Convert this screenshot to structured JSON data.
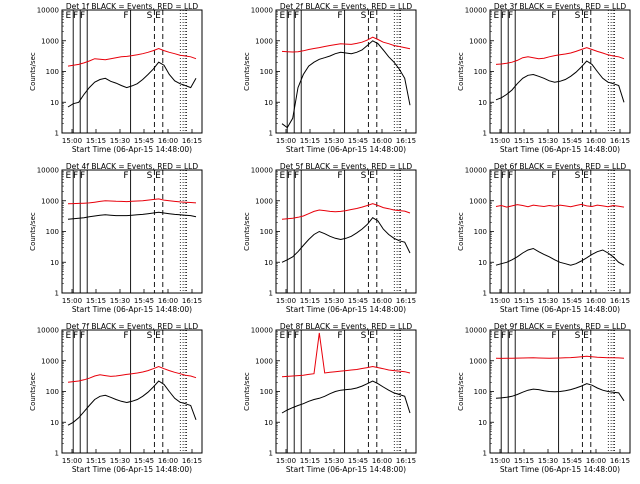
{
  "chart_data": [
    {
      "type": "line",
      "title": "Det 1f BLACK = Events, RED = LLD",
      "xlabel": "Start Time (06-Apr-15 14:48:00)",
      "ylabel": "Counts/sec",
      "ylim": [
        1,
        10000
      ],
      "yscale": "log",
      "xticks": [
        "15:00",
        "15:15",
        "15:30",
        "15:45",
        "16:00",
        "16:15"
      ],
      "yticks": [
        "1",
        "10",
        "100",
        "1000",
        "10000"
      ],
      "markers": [
        {
          "label": "E",
          "style": "solid"
        },
        {
          "label": "F",
          "style": "solid"
        },
        {
          "label": "F",
          "style": "solid"
        },
        {
          "label": "F",
          "style": "solid"
        },
        {
          "label": "S",
          "style": "dashed"
        },
        {
          "label": "E",
          "style": "dashed"
        }
      ],
      "series": [
        {
          "name": "RED = LLD",
          "color": "#e8000b",
          "values": [
            150,
            160,
            170,
            190,
            220,
            260,
            250,
            240,
            260,
            280,
            300,
            310,
            330,
            350,
            380,
            420,
            480,
            560,
            480,
            420,
            380,
            340,
            320,
            300,
            260
          ]
        },
        {
          "name": "BLACK = Events",
          "color": "#000000",
          "values": [
            7,
            9,
            10,
            18,
            30,
            45,
            55,
            60,
            48,
            42,
            35,
            30,
            34,
            40,
            55,
            80,
            120,
            200,
            160,
            80,
            50,
            40,
            35,
            30,
            60
          ]
        }
      ]
    },
    {
      "type": "line",
      "title": "Det 2f BLACK = Events, RED = LLD",
      "xlabel": "Start Time (06-Apr-15 14:48:00)",
      "ylabel": "Counts/sec",
      "ylim": [
        1,
        10000
      ],
      "yscale": "log",
      "xticks": [
        "15:00",
        "15:15",
        "15:30",
        "15:45",
        "16:00",
        "16:15"
      ],
      "yticks": [
        "1",
        "10",
        "100",
        "1000",
        "10000"
      ],
      "markers": [
        {
          "label": "E",
          "style": "solid"
        },
        {
          "label": "F",
          "style": "solid"
        },
        {
          "label": "F",
          "style": "solid"
        },
        {
          "label": "F",
          "style": "solid"
        },
        {
          "label": "S",
          "style": "dashed"
        },
        {
          "label": "E",
          "style": "dashed"
        }
      ],
      "series": [
        {
          "name": "RED = LLD",
          "color": "#e8000b",
          "values": [
            450,
            440,
            430,
            440,
            470,
            520,
            560,
            600,
            650,
            700,
            750,
            800,
            780,
            760,
            820,
            900,
            1050,
            1300,
            1100,
            900,
            800,
            700,
            650,
            600,
            550
          ]
        },
        {
          "name": "BLACK = Events",
          "color": "#000000",
          "values": [
            2,
            1.5,
            3,
            30,
            80,
            150,
            200,
            250,
            280,
            320,
            380,
            420,
            400,
            380,
            420,
            500,
            700,
            1000,
            800,
            500,
            300,
            200,
            120,
            60,
            8
          ]
        }
      ]
    },
    {
      "type": "line",
      "title": "Det 3f BLACK = Events, RED = LLD",
      "xlabel": "Start Time (06-Apr-15 14:48:00)",
      "ylabel": "Counts/sec",
      "ylim": [
        1,
        10000
      ],
      "yscale": "log",
      "xticks": [
        "15:00",
        "15:15",
        "15:30",
        "15:45",
        "16:00",
        "16:15"
      ],
      "yticks": [
        "1",
        "10",
        "100",
        "1000",
        "10000"
      ],
      "markers": [
        {
          "label": "E",
          "style": "solid"
        },
        {
          "label": "F",
          "style": "solid"
        },
        {
          "label": "F",
          "style": "solid"
        },
        {
          "label": "F",
          "style": "solid"
        },
        {
          "label": "S",
          "style": "dashed"
        },
        {
          "label": "E",
          "style": "dashed"
        }
      ],
      "series": [
        {
          "name": "RED = LLD",
          "color": "#e8000b",
          "values": [
            170,
            175,
            185,
            200,
            230,
            280,
            300,
            280,
            260,
            270,
            300,
            330,
            350,
            370,
            400,
            450,
            520,
            600,
            520,
            450,
            400,
            350,
            320,
            300,
            260
          ]
        },
        {
          "name": "BLACK = Events",
          "color": "#000000",
          "values": [
            12,
            14,
            18,
            25,
            40,
            60,
            75,
            80,
            70,
            60,
            50,
            45,
            48,
            55,
            70,
            95,
            140,
            220,
            170,
            100,
            60,
            45,
            40,
            35,
            10
          ]
        }
      ]
    },
    {
      "type": "line",
      "title": "Det 4f BLACK = Events, RED = LLD",
      "xlabel": "Start Time (06-Apr-15 14:48:00)",
      "ylabel": "Counts/sec",
      "ylim": [
        1,
        10000
      ],
      "yscale": "log",
      "xticks": [
        "15:00",
        "15:15",
        "15:30",
        "15:45",
        "16:00",
        "16:15"
      ],
      "yticks": [
        "1",
        "10",
        "100",
        "1000",
        "10000"
      ],
      "markers": [
        {
          "label": "E",
          "style": "solid"
        },
        {
          "label": "F",
          "style": "solid"
        },
        {
          "label": "F",
          "style": "solid"
        },
        {
          "label": "F",
          "style": "solid"
        },
        {
          "label": "S",
          "style": "dashed"
        },
        {
          "label": "E",
          "style": "dashed"
        }
      ],
      "series": [
        {
          "name": "RED = LLD",
          "color": "#e8000b",
          "values": [
            800,
            810,
            820,
            830,
            850,
            900,
            950,
            1000,
            980,
            960,
            950,
            940,
            960,
            980,
            1000,
            1050,
            1100,
            1150,
            1050,
            1000,
            950,
            920,
            900,
            880,
            850
          ]
        },
        {
          "name": "BLACK = Events",
          "color": "#000000",
          "values": [
            250,
            260,
            270,
            280,
            300,
            320,
            340,
            350,
            340,
            330,
            330,
            330,
            340,
            350,
            360,
            380,
            400,
            420,
            400,
            380,
            360,
            350,
            340,
            330,
            300
          ]
        }
      ]
    },
    {
      "type": "line",
      "title": "Det 5f BLACK = Events, RED = LLD",
      "xlabel": "Start Time (06-Apr-15 14:48:00)",
      "ylabel": "Counts/sec",
      "ylim": [
        1,
        10000
      ],
      "yscale": "log",
      "xticks": [
        "15:00",
        "15:15",
        "15:30",
        "15:45",
        "16:00",
        "16:15"
      ],
      "yticks": [
        "1",
        "10",
        "100",
        "1000",
        "10000"
      ],
      "markers": [
        {
          "label": "E",
          "style": "solid"
        },
        {
          "label": "F",
          "style": "solid"
        },
        {
          "label": "F",
          "style": "solid"
        },
        {
          "label": "F",
          "style": "solid"
        },
        {
          "label": "S",
          "style": "dashed"
        },
        {
          "label": "E",
          "style": "dashed"
        }
      ],
      "series": [
        {
          "name": "RED = LLD",
          "color": "#e8000b",
          "values": [
            250,
            260,
            270,
            290,
            320,
            380,
            450,
            500,
            480,
            450,
            440,
            450,
            480,
            520,
            560,
            620,
            700,
            800,
            700,
            600,
            550,
            500,
            480,
            460,
            400
          ]
        },
        {
          "name": "BLACK = Events",
          "color": "#000000",
          "values": [
            10,
            12,
            15,
            22,
            35,
            55,
            80,
            100,
            85,
            70,
            60,
            55,
            60,
            70,
            90,
            120,
            170,
            280,
            220,
            120,
            80,
            60,
            50,
            45,
            20
          ]
        }
      ]
    },
    {
      "type": "line",
      "title": "Det 6f BLACK = Events, RED = LLD",
      "xlabel": "Start Time (06-Apr-15 14:48:00)",
      "ylabel": "Counts/sec",
      "ylim": [
        1,
        10000
      ],
      "yscale": "log",
      "xticks": [
        "15:00",
        "15:15",
        "15:30",
        "15:45",
        "16:00",
        "16:15"
      ],
      "yticks": [
        "1",
        "10",
        "100",
        "1000",
        "10000"
      ],
      "markers": [
        {
          "label": "E",
          "style": "solid"
        },
        {
          "label": "F",
          "style": "solid"
        },
        {
          "label": "F",
          "style": "solid"
        },
        {
          "label": "F",
          "style": "solid"
        },
        {
          "label": "S",
          "style": "dashed"
        },
        {
          "label": "E",
          "style": "dashed"
        }
      ],
      "series": [
        {
          "name": "RED = LLD",
          "color": "#e8000b",
          "values": [
            650,
            700,
            620,
            680,
            750,
            700,
            640,
            720,
            680,
            650,
            700,
            660,
            720,
            680,
            640,
            700,
            760,
            680,
            650,
            720,
            680,
            640,
            700,
            660,
            620
          ]
        },
        {
          "name": "BLACK = Events",
          "color": "#000000",
          "values": [
            8,
            9,
            10,
            12,
            15,
            20,
            25,
            28,
            22,
            18,
            15,
            12,
            10,
            9,
            8,
            9,
            11,
            14,
            18,
            22,
            25,
            20,
            15,
            10,
            8
          ]
        }
      ]
    },
    {
      "type": "line",
      "title": "Det 7f BLACK = Events, RED = LLD",
      "xlabel": "Start Time (06-Apr-15 14:48:00)",
      "ylabel": "Counts/sec",
      "ylim": [
        1,
        10000
      ],
      "yscale": "log",
      "xticks": [
        "15:00",
        "15:15",
        "15:30",
        "15:45",
        "16:00",
        "16:15"
      ],
      "yticks": [
        "1",
        "10",
        "100",
        "1000",
        "10000"
      ],
      "markers": [
        {
          "label": "E",
          "style": "solid"
        },
        {
          "label": "F",
          "style": "solid"
        },
        {
          "label": "F",
          "style": "solid"
        },
        {
          "label": "F",
          "style": "solid"
        },
        {
          "label": "S",
          "style": "dashed"
        },
        {
          "label": "E",
          "style": "dashed"
        }
      ],
      "series": [
        {
          "name": "RED = LLD",
          "color": "#e8000b",
          "values": [
            200,
            210,
            220,
            240,
            270,
            320,
            350,
            330,
            310,
            320,
            340,
            360,
            380,
            400,
            430,
            480,
            550,
            650,
            550,
            480,
            420,
            380,
            340,
            320,
            280
          ]
        },
        {
          "name": "BLACK = Events",
          "color": "#000000",
          "values": [
            8,
            10,
            14,
            22,
            35,
            55,
            70,
            75,
            65,
            55,
            48,
            44,
            48,
            55,
            70,
            95,
            140,
            220,
            170,
            100,
            60,
            45,
            40,
            35,
            12
          ]
        }
      ]
    },
    {
      "type": "line",
      "title": "Det 8f BLACK = Events, RED = LLD",
      "xlabel": "Start Time (06-Apr-15 14:48:00)",
      "ylabel": "Counts/sec",
      "ylim": [
        1,
        10000
      ],
      "yscale": "log",
      "xticks": [
        "15:00",
        "15:15",
        "15:30",
        "15:45",
        "16:00",
        "16:15"
      ],
      "yticks": [
        "1",
        "10",
        "100",
        "1000",
        "10000"
      ],
      "markers": [
        {
          "label": "E",
          "style": "solid"
        },
        {
          "label": "F",
          "style": "solid"
        },
        {
          "label": "F",
          "style": "solid"
        },
        {
          "label": "F",
          "style": "solid"
        },
        {
          "label": "S",
          "style": "dashed"
        },
        {
          "label": "E",
          "style": "dashed"
        }
      ],
      "series": [
        {
          "name": "RED = LLD",
          "color": "#e8000b",
          "values": [
            300,
            310,
            320,
            330,
            340,
            360,
            380,
            8000,
            400,
            420,
            440,
            460,
            480,
            500,
            520,
            560,
            600,
            650,
            600,
            550,
            500,
            480,
            460,
            440,
            400
          ]
        },
        {
          "name": "BLACK = Events",
          "color": "#000000",
          "values": [
            20,
            25,
            30,
            35,
            40,
            48,
            55,
            60,
            70,
            85,
            100,
            110,
            115,
            120,
            130,
            150,
            180,
            220,
            180,
            140,
            110,
            90,
            80,
            70,
            20
          ]
        }
      ]
    },
    {
      "type": "line",
      "title": "Det 9f BLACK = Events, RED = LLD",
      "xlabel": "Start Time (06-Apr-15 14:48:00)",
      "ylabel": "Counts/sec",
      "ylim": [
        1,
        10000
      ],
      "yscale": "log",
      "xticks": [
        "15:00",
        "15:15",
        "15:30",
        "15:45",
        "16:00",
        "16:15"
      ],
      "yticks": [
        "1",
        "10",
        "100",
        "1000",
        "10000"
      ],
      "markers": [
        {
          "label": "E",
          "style": "solid"
        },
        {
          "label": "F",
          "style": "solid"
        },
        {
          "label": "F",
          "style": "solid"
        },
        {
          "label": "F",
          "style": "solid"
        },
        {
          "label": "S",
          "style": "dashed"
        },
        {
          "label": "E",
          "style": "dashed"
        }
      ],
      "series": [
        {
          "name": "RED = LLD",
          "color": "#e8000b",
          "values": [
            1200,
            1190,
            1200,
            1210,
            1220,
            1230,
            1240,
            1250,
            1230,
            1220,
            1210,
            1220,
            1230,
            1250,
            1270,
            1300,
            1350,
            1400,
            1350,
            1300,
            1280,
            1260,
            1250,
            1240,
            1200
          ]
        },
        {
          "name": "BLACK = Events",
          "color": "#000000",
          "values": [
            60,
            62,
            65,
            70,
            80,
            95,
            110,
            120,
            115,
            105,
            100,
            98,
            100,
            105,
            115,
            130,
            150,
            180,
            160,
            130,
            110,
            100,
            95,
            90,
            50
          ]
        }
      ]
    }
  ]
}
